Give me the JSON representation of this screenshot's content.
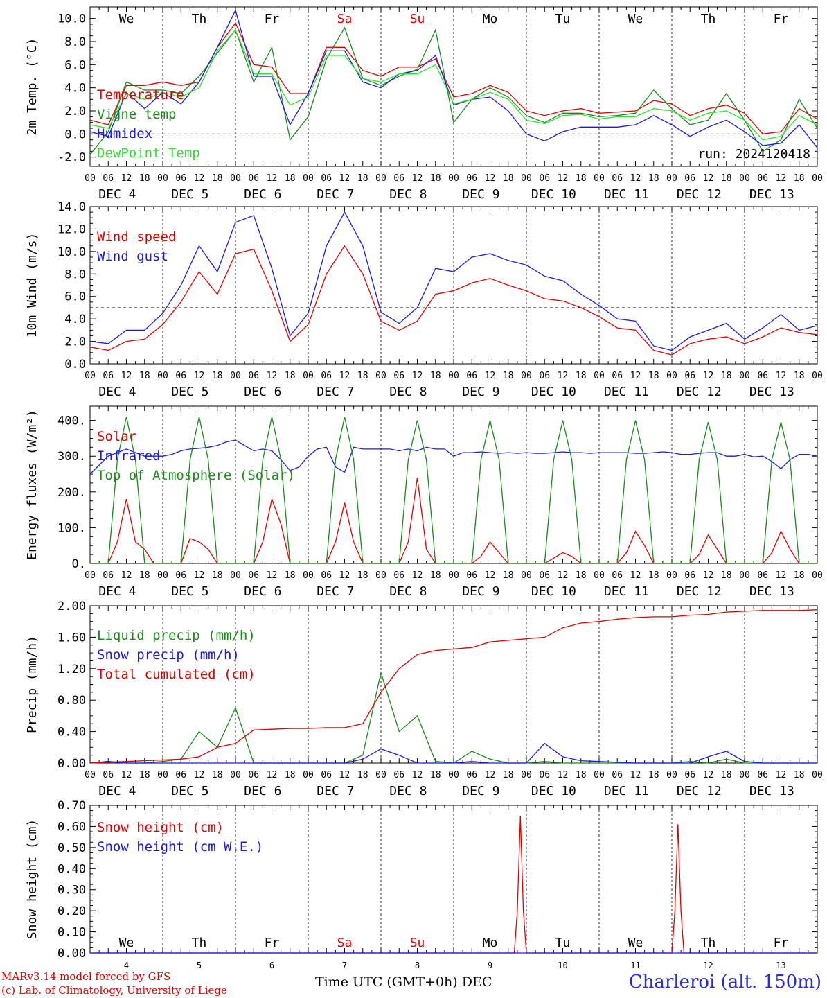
{
  "footer": {
    "model_line": "MARv3.14 model forced by GFS",
    "lab_line": "(c) Lab. of Climatology, University of Liege",
    "station": "Charleroi (alt. 150m)",
    "x_title": "Time UTC (GMT+0h) DEC"
  },
  "colors": {
    "red": "#e00000",
    "green": "#1a8a1a",
    "blue": "#1a1ae0",
    "lightgreen": "#30e030"
  },
  "days": {
    "names": [
      "We",
      "Th",
      "Fr",
      "Sa",
      "Su",
      "Mo",
      "Tu",
      "We",
      "Th",
      "Fr"
    ],
    "weekend_index": [
      3,
      4
    ],
    "dates": [
      "DEC  4",
      "DEC  5",
      "DEC  6",
      "DEC  7",
      "DEC  8",
      "DEC  9",
      "DEC 10",
      "DEC 11",
      "DEC 12",
      "DEC 13"
    ],
    "date_numbers": [
      "4",
      "5",
      "6",
      "7",
      "8",
      "9",
      "10",
      "11",
      "12",
      "13"
    ],
    "hour_labels": [
      "00",
      "06",
      "12",
      "18"
    ],
    "final_label": "00"
  },
  "chart_data": [
    {
      "type": "line",
      "ylabel": "2m Temp. (°C)",
      "ylim": [
        -2.8,
        11.0
      ],
      "yticks": [
        "-2.0",
        "0.0",
        "2.0",
        "4.0",
        "6.0",
        "8.0",
        "10.0"
      ],
      "ytick_values": [
        -2,
        0,
        2,
        4,
        6,
        8,
        10
      ],
      "run_label": "run: 2024120418",
      "dashed_y": 0,
      "x_hours": [
        0,
        6,
        12,
        18,
        24,
        30,
        36,
        42,
        48,
        54,
        60,
        66,
        72,
        78,
        84,
        90,
        96,
        102,
        108,
        114,
        120,
        126,
        132,
        138,
        144,
        150,
        156,
        162,
        168,
        174,
        180,
        186,
        192,
        198,
        204,
        210,
        216,
        222,
        228,
        234,
        240
      ],
      "series": [
        {
          "name": "Temperature",
          "color": "red",
          "values": [
            1.2,
            0.8,
            4.2,
            4.2,
            4.5,
            4.2,
            4.5,
            7.5,
            9.6,
            6.0,
            5.8,
            3.5,
            3.5,
            7.5,
            7.5,
            5.5,
            5.0,
            5.8,
            5.8,
            6.5,
            3.2,
            3.5,
            4.2,
            3.6,
            2.0,
            1.6,
            2.0,
            2.2,
            1.8,
            1.9,
            2.0,
            2.9,
            2.6,
            1.6,
            2.2,
            2.5,
            1.8,
            0.0,
            0.2,
            2.2,
            1.3
          ]
        },
        {
          "name": "Vigne temp",
          "color": "green",
          "values": [
            -1.8,
            0.2,
            4.5,
            3.8,
            3.8,
            3.5,
            5.0,
            7.0,
            9.0,
            4.5,
            7.5,
            -0.5,
            1.5,
            6.5,
            9.2,
            4.8,
            4.2,
            5.0,
            5.6,
            9.0,
            1.0,
            3.0,
            4.0,
            3.2,
            1.6,
            1.0,
            1.8,
            1.8,
            1.5,
            1.6,
            1.8,
            3.8,
            2.2,
            0.8,
            1.2,
            3.5,
            1.2,
            -1.5,
            -0.5,
            3.0,
            0.5
          ]
        },
        {
          "name": "Humidex",
          "color": "blue",
          "values": [
            0.2,
            -0.2,
            3.6,
            2.2,
            3.6,
            2.6,
            4.5,
            7.5,
            10.7,
            5.0,
            5.0,
            0.8,
            3.5,
            7.2,
            7.2,
            4.5,
            4.0,
            5.2,
            5.5,
            6.8,
            2.5,
            3.0,
            3.2,
            2.0,
            0.0,
            -0.6,
            0.2,
            0.6,
            0.6,
            0.6,
            0.8,
            1.6,
            0.8,
            -0.2,
            0.6,
            1.2,
            0.2,
            -1.0,
            -0.8,
            0.8,
            -1.2
          ]
        },
        {
          "name": "DewPoint Temp",
          "color": "lightgreen",
          "values": [
            0.8,
            0.5,
            3.5,
            3.0,
            3.6,
            3.2,
            4.0,
            7.2,
            9.0,
            5.2,
            5.2,
            2.5,
            3.2,
            6.8,
            6.8,
            4.8,
            4.5,
            5.2,
            5.2,
            6.0,
            2.6,
            3.0,
            3.6,
            3.0,
            1.2,
            0.9,
            1.6,
            1.7,
            1.3,
            1.5,
            1.5,
            2.2,
            2.0,
            1.2,
            1.8,
            2.0,
            1.2,
            -0.5,
            -0.2,
            1.6,
            0.8
          ]
        }
      ]
    },
    {
      "type": "line",
      "ylabel": "10m Wind (m/s)",
      "ylim": [
        0,
        14.0
      ],
      "yticks": [
        "0.0",
        "2.0",
        "4.0",
        "6.0",
        "8.0",
        "10.0",
        "12.0",
        "14.0"
      ],
      "ytick_values": [
        0,
        2,
        4,
        6,
        8,
        10,
        12,
        14
      ],
      "dashed_y": 5,
      "x_hours": [
        0,
        6,
        12,
        18,
        24,
        30,
        36,
        42,
        48,
        54,
        60,
        66,
        72,
        78,
        84,
        90,
        96,
        102,
        108,
        114,
        120,
        126,
        132,
        138,
        144,
        150,
        156,
        162,
        168,
        174,
        180,
        186,
        192,
        198,
        204,
        210,
        216,
        222,
        228,
        234,
        240
      ],
      "series": [
        {
          "name": "Wind speed",
          "color": "red",
          "values": [
            1.5,
            1.2,
            2.0,
            2.2,
            3.5,
            5.5,
            8.2,
            6.2,
            9.8,
            10.2,
            6.5,
            2.0,
            3.5,
            8.0,
            10.5,
            8.0,
            3.8,
            3.0,
            3.8,
            6.2,
            6.5,
            7.2,
            7.6,
            7.0,
            6.5,
            5.8,
            5.6,
            5.0,
            4.2,
            3.2,
            3.0,
            1.2,
            0.8,
            1.8,
            2.2,
            2.4,
            1.8,
            2.4,
            3.2,
            2.8,
            2.6
          ]
        },
        {
          "name": "Wind gust",
          "color": "blue",
          "values": [
            2.0,
            1.8,
            3.0,
            3.0,
            4.5,
            7.0,
            10.5,
            8.2,
            12.6,
            13.2,
            8.5,
            2.5,
            4.5,
            10.5,
            13.5,
            10.5,
            4.6,
            3.6,
            5.0,
            8.5,
            8.2,
            9.5,
            9.8,
            9.2,
            8.8,
            7.8,
            7.4,
            6.2,
            5.2,
            4.0,
            3.8,
            1.6,
            1.2,
            2.4,
            3.0,
            3.6,
            2.2,
            3.2,
            4.4,
            3.0,
            3.4
          ]
        }
      ]
    },
    {
      "type": "line",
      "ylabel": "Energy fluxes (W/m²)",
      "ylim": [
        0,
        440
      ],
      "yticks": [
        "0.",
        "100.",
        "200.",
        "300.",
        "400."
      ],
      "ytick_values": [
        0,
        100,
        200,
        300,
        400
      ],
      "x_hours": [
        0,
        3,
        6,
        9,
        12,
        15,
        18,
        21,
        24,
        27,
        30,
        33,
        36,
        39,
        42,
        45,
        48,
        51,
        54,
        57,
        60,
        63,
        66,
        69,
        72,
        75,
        78,
        81,
        84,
        87,
        90,
        93,
        96,
        99,
        102,
        105,
        108,
        111,
        114,
        117,
        120,
        123,
        126,
        129,
        132,
        135,
        138,
        141,
        144,
        147,
        150,
        153,
        156,
        159,
        162,
        165,
        168,
        171,
        174,
        177,
        180,
        183,
        186,
        189,
        192,
        195,
        198,
        201,
        204,
        207,
        210,
        213,
        216,
        219,
        222,
        225,
        228,
        231,
        234,
        237,
        240
      ],
      "series": [
        {
          "name": "Solar",
          "color": "red",
          "values": [
            0,
            0,
            0,
            60,
            180,
            60,
            40,
            0,
            0,
            0,
            0,
            70,
            60,
            40,
            0,
            0,
            0,
            0,
            0,
            60,
            180,
            110,
            0,
            0,
            0,
            0,
            0,
            60,
            170,
            60,
            0,
            0,
            0,
            0,
            0,
            60,
            240,
            40,
            0,
            0,
            0,
            0,
            0,
            20,
            60,
            30,
            0,
            0,
            0,
            0,
            0,
            15,
            30,
            20,
            0,
            0,
            0,
            0,
            0,
            30,
            90,
            50,
            0,
            0,
            0,
            0,
            0,
            25,
            80,
            40,
            0,
            0,
            0,
            0,
            0,
            30,
            90,
            40,
            0,
            0,
            0
          ]
        },
        {
          "name": "Infrared",
          "color": "blue",
          "values": [
            250,
            275,
            300,
            310,
            320,
            310,
            300,
            300,
            300,
            305,
            315,
            320,
            322,
            325,
            330,
            340,
            345,
            330,
            315,
            320,
            315,
            290,
            260,
            270,
            300,
            320,
            325,
            270,
            255,
            325,
            320,
            320,
            320,
            320,
            315,
            320,
            315,
            325,
            320,
            320,
            300,
            310,
            310,
            312,
            310,
            308,
            310,
            308,
            310,
            308,
            308,
            310,
            312,
            310,
            310,
            308,
            310,
            310,
            310,
            310,
            308,
            308,
            310,
            312,
            310,
            305,
            305,
            308,
            310,
            310,
            300,
            300,
            305,
            298,
            300,
            285,
            265,
            290,
            305,
            305,
            300
          ]
        },
        {
          "name": "Top of Atmosphere (Solar)",
          "color": "green",
          "values": [
            0,
            0,
            0,
            290,
            410,
            290,
            0,
            0,
            0,
            0,
            0,
            290,
            410,
            290,
            0,
            0,
            0,
            0,
            0,
            290,
            410,
            290,
            0,
            0,
            0,
            0,
            0,
            290,
            410,
            290,
            0,
            0,
            0,
            0,
            0,
            290,
            400,
            290,
            0,
            0,
            0,
            0,
            0,
            290,
            400,
            290,
            0,
            0,
            0,
            0,
            0,
            290,
            400,
            290,
            0,
            0,
            0,
            0,
            0,
            290,
            400,
            290,
            0,
            0,
            0,
            0,
            0,
            290,
            395,
            290,
            0,
            0,
            0,
            0,
            0,
            290,
            395,
            290,
            0,
            0,
            0
          ]
        }
      ]
    },
    {
      "type": "line",
      "ylabel": "Precip (mm/h)",
      "ylim": [
        0,
        2.0
      ],
      "yticks": [
        "0.00",
        "0.40",
        "0.80",
        "1.20",
        "1.60",
        "2.00"
      ],
      "ytick_values": [
        0,
        0.4,
        0.8,
        1.2,
        1.6,
        2.0
      ],
      "x_hours": [
        0,
        6,
        12,
        18,
        24,
        30,
        36,
        42,
        48,
        54,
        60,
        66,
        72,
        78,
        84,
        90,
        96,
        102,
        108,
        114,
        120,
        126,
        132,
        138,
        144,
        150,
        156,
        162,
        168,
        174,
        180,
        186,
        192,
        198,
        204,
        210,
        216,
        222,
        228,
        234,
        240
      ],
      "series": [
        {
          "name": "Liquid precip (mm/h)",
          "color": "green",
          "values": [
            0.0,
            0.02,
            0.0,
            0.0,
            0.02,
            0.05,
            0.4,
            0.2,
            0.7,
            0.0,
            0.0,
            0.0,
            0.0,
            0.0,
            0.0,
            0.1,
            1.15,
            0.4,
            0.6,
            0.02,
            0.0,
            0.15,
            0.05,
            0.0,
            0.0,
            0.02,
            0.0,
            0.0,
            0.0,
            0.0,
            0.0,
            0.0,
            0.0,
            0.02,
            0.0,
            0.05,
            0.0,
            0.0,
            0.0,
            0.0,
            0.0
          ]
        },
        {
          "name": "Snow precip (mm/h)",
          "color": "blue",
          "values": [
            0.0,
            0.02,
            0.0,
            0.0,
            0.0,
            0.0,
            0.0,
            0.0,
            0.0,
            0.0,
            0.0,
            0.0,
            0.0,
            0.0,
            0.0,
            0.05,
            0.18,
            0.1,
            0.0,
            0.0,
            0.0,
            0.02,
            0.0,
            0.0,
            0.0,
            0.25,
            0.08,
            0.03,
            0.02,
            0.01,
            0.0,
            0.0,
            0.0,
            0.0,
            0.08,
            0.15,
            0.02,
            0.0,
            0.0,
            0.0,
            0.0
          ]
        },
        {
          "name": "Total cumulated (cm)",
          "color": "red",
          "values": [
            0.0,
            0.01,
            0.02,
            0.03,
            0.04,
            0.05,
            0.08,
            0.2,
            0.25,
            0.42,
            0.43,
            0.44,
            0.44,
            0.45,
            0.45,
            0.5,
            0.9,
            1.2,
            1.38,
            1.43,
            1.45,
            1.47,
            1.54,
            1.56,
            1.58,
            1.6,
            1.72,
            1.78,
            1.8,
            1.83,
            1.85,
            1.86,
            1.86,
            1.88,
            1.89,
            1.92,
            1.93,
            1.94,
            1.94,
            1.94,
            1.95
          ]
        }
      ]
    },
    {
      "type": "line",
      "ylabel": "Snow height (cm)",
      "ylim": [
        0,
        0.7
      ],
      "yticks": [
        "0.00",
        "0.10",
        "0.20",
        "0.30",
        "0.40",
        "0.50",
        "0.60",
        "0.70"
      ],
      "ytick_values": [
        0,
        0.1,
        0.2,
        0.3,
        0.4,
        0.5,
        0.6,
        0.7
      ],
      "x_hours": [
        0,
        140,
        141,
        142,
        143,
        144,
        192,
        193,
        194,
        195,
        196,
        240
      ],
      "series": [
        {
          "name": "Snow height (cm)",
          "color": "red",
          "values": [
            0,
            0,
            0.2,
            0.65,
            0.2,
            0,
            0,
            0.2,
            0.61,
            0.2,
            0,
            0
          ]
        },
        {
          "name": "Snow height (cm W.E.)",
          "color": "blue",
          "values": [
            0,
            0,
            0,
            0,
            0,
            0,
            0,
            0,
            0,
            0,
            0,
            0
          ]
        }
      ]
    }
  ]
}
